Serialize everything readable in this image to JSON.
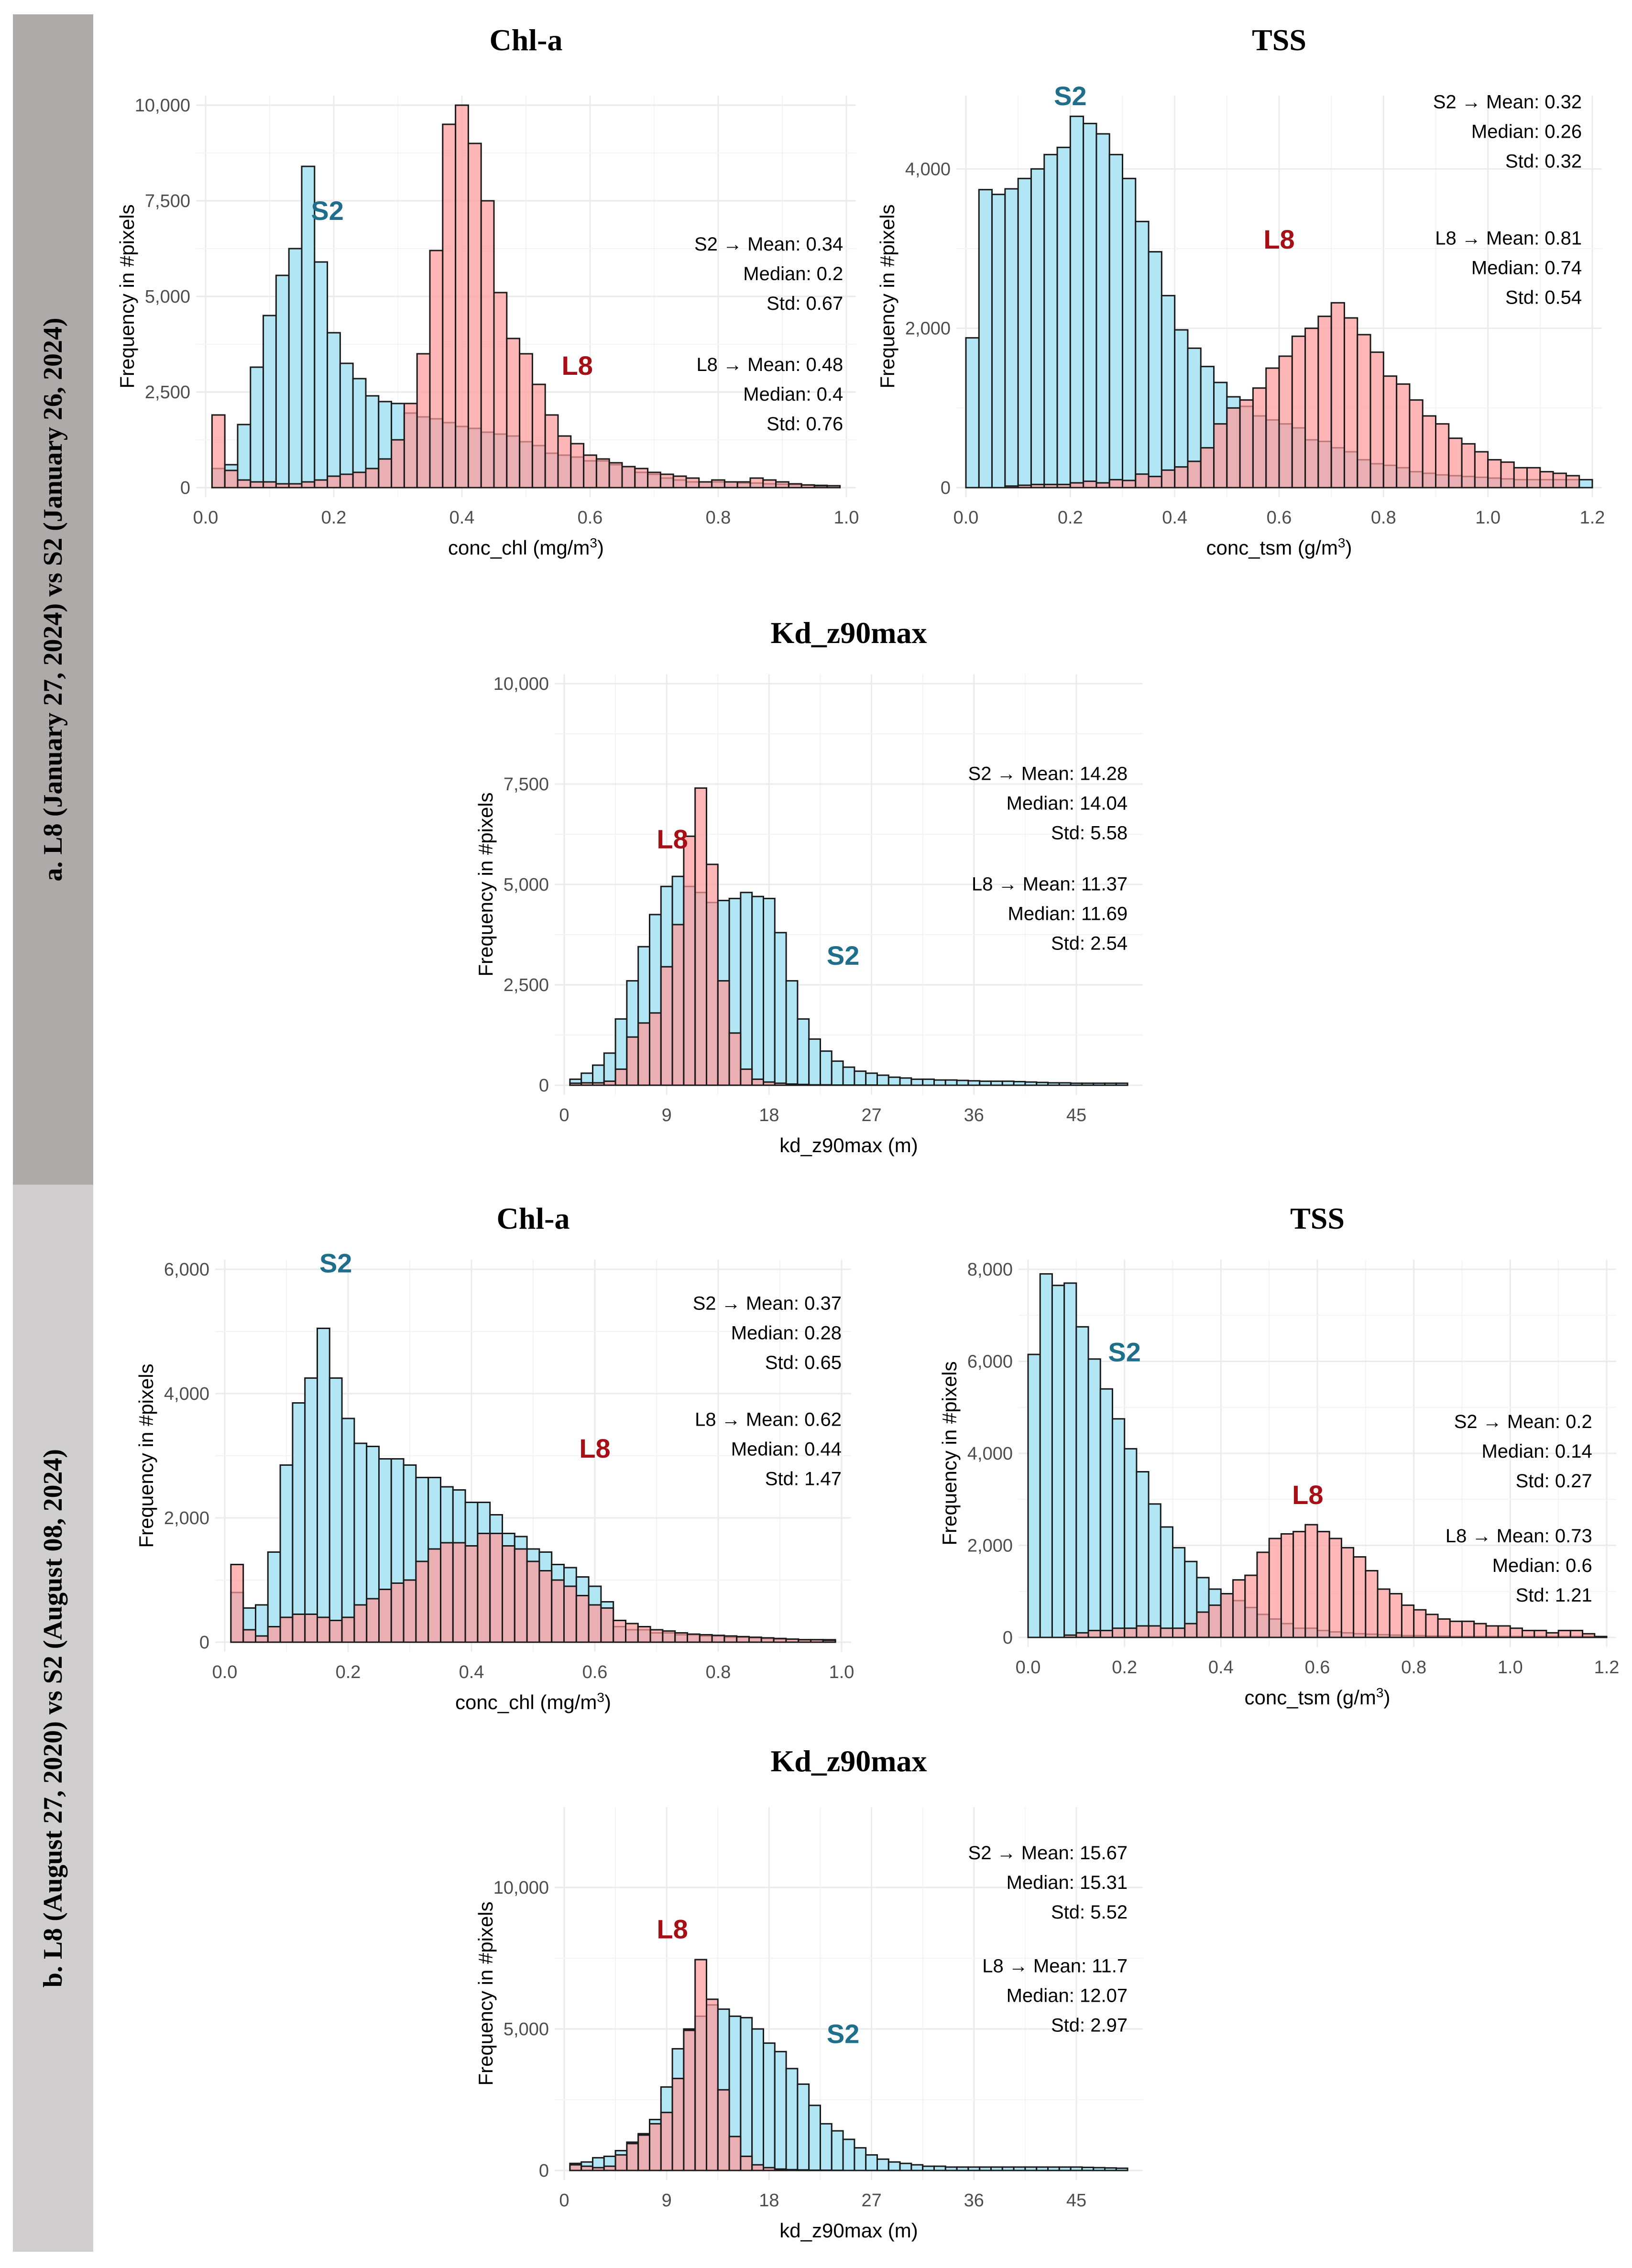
{
  "sections": [
    {
      "id": "a",
      "label": "a.   L8 (January 27, 2024) vs S2 (January 26, 2024)"
    },
    {
      "id": "b",
      "label": "b.   L8 (August 27, 2020) vs S2 (August 08, 2024)"
    }
  ],
  "colors": {
    "S2_fill": "#b3e6f5",
    "L8_fill": "#ff9a9a",
    "S2_tag": "#1f6e8c",
    "L8_tag": "#a50f15",
    "side_a": "#aeaaaa",
    "side_b": "#d0cece"
  },
  "chart_data": [
    {
      "id": "a-chl",
      "section": "a",
      "type": "bar",
      "title": "Chl-a",
      "xlabel": "conc_chl (mg/m",
      "xlabel_sup": "3",
      "xlabel_end": ")",
      "ylabel": "Frequency in #pixels",
      "xlim": [
        0,
        1
      ],
      "ylim": [
        0,
        10000
      ],
      "grid": true,
      "xticks": [
        0.0,
        0.2,
        0.4,
        0.6,
        0.8,
        1.0
      ],
      "xtick_labels": [
        "0.0",
        "0.2",
        "0.4",
        "0.6",
        "0.8",
        "1.0"
      ],
      "yticks": [
        0,
        2500,
        5000,
        7500,
        10000
      ],
      "ytick_labels": [
        "0",
        "2,500",
        "5,000",
        "7,500",
        "10,000"
      ],
      "bin_start": 0.01,
      "bin_width": 0.02,
      "series": [
        {
          "name": "S2",
          "values": [
            500,
            600,
            1650,
            3150,
            4500,
            5550,
            6250,
            8400,
            5900,
            4050,
            3250,
            2850,
            2400,
            2250,
            2200,
            1950,
            1850,
            1800,
            1700,
            1600,
            1550,
            1450,
            1400,
            1350,
            1200,
            1100,
            900,
            850,
            800,
            700,
            700,
            600,
            550,
            400,
            350,
            250,
            200,
            150,
            150,
            150,
            150,
            120,
            120,
            100,
            90,
            80,
            70,
            60,
            50
          ]
        },
        {
          "name": "L8",
          "values": [
            1900,
            450,
            200,
            150,
            150,
            100,
            100,
            150,
            200,
            300,
            350,
            400,
            500,
            750,
            1250,
            2200,
            3500,
            6200,
            9500,
            10000,
            9000,
            7500,
            5100,
            3900,
            3500,
            2700,
            1900,
            1350,
            1150,
            850,
            750,
            650,
            550,
            500,
            400,
            350,
            300,
            250,
            150,
            200,
            150,
            150,
            250,
            200,
            150,
            100,
            70,
            50,
            50
          ]
        }
      ],
      "annotations": {
        "S2_tag": "S2",
        "L8_tag": "L8",
        "S2_stats": [
          "S2  → Mean: 0.34",
          "Median: 0.2",
          "Std: 0.67"
        ],
        "L8_stats": [
          "L8  → Mean: 0.48",
          "Median: 0.4",
          "Std: 0.76"
        ]
      }
    },
    {
      "id": "a-tss",
      "section": "a",
      "type": "bar",
      "title": "TSS",
      "xlabel": "conc_tsm (g/m",
      "xlabel_sup": "3",
      "xlabel_end": ")",
      "ylabel": "Frequency in #pixels",
      "xlim": [
        0,
        1.2
      ],
      "ylim": [
        0,
        4800
      ],
      "grid": true,
      "xticks": [
        0.0,
        0.2,
        0.4,
        0.6,
        0.8,
        1.0,
        1.2
      ],
      "xtick_labels": [
        "0.0",
        "0.2",
        "0.4",
        "0.6",
        "0.8",
        "1.0",
        "1.2"
      ],
      "yticks": [
        0,
        2000,
        4000
      ],
      "ytick_labels": [
        "0",
        "2,000",
        "4,000"
      ],
      "bin_start": 0.0,
      "bin_width": 0.025,
      "series": [
        {
          "name": "S2",
          "values": [
            1880,
            3740,
            3680,
            3750,
            3880,
            4000,
            4180,
            4270,
            4660,
            4570,
            4440,
            4180,
            3880,
            3340,
            2960,
            2410,
            1980,
            1750,
            1520,
            1320,
            1140,
            1020,
            900,
            850,
            800,
            750,
            600,
            580,
            500,
            450,
            350,
            300,
            280,
            250,
            200,
            180,
            160,
            150,
            140,
            130,
            120,
            110,
            100,
            100,
            100,
            100,
            100,
            100
          ]
        },
        {
          "name": "L8",
          "values": [
            0,
            0,
            0,
            20,
            30,
            40,
            40,
            40,
            60,
            80,
            60,
            100,
            90,
            170,
            140,
            220,
            260,
            330,
            500,
            800,
            1000,
            1100,
            1250,
            1500,
            1650,
            1900,
            2000,
            2150,
            2320,
            2130,
            1920,
            1700,
            1400,
            1300,
            1100,
            900,
            800,
            620,
            550,
            450,
            350,
            320,
            250,
            250,
            200,
            180,
            150
          ]
        }
      ],
      "annotations": {
        "S2_tag": "S2",
        "L8_tag": "L8",
        "S2_stats": [
          "S2  → Mean: 0.32",
          "Median: 0.26",
          "Std: 0.32"
        ],
        "L8_stats": [
          "L8  → Mean: 0.81",
          "Median: 0.74",
          "Std: 0.54"
        ]
      }
    },
    {
      "id": "a-kd",
      "section": "a",
      "type": "bar",
      "title": "Kd_z90max",
      "xlabel": "kd_z90max (m)",
      "xlabel_sup": "",
      "xlabel_end": "",
      "ylabel": "Frequency in #pixels",
      "xlim": [
        0,
        50
      ],
      "ylim": [
        0,
        10000
      ],
      "grid": true,
      "xticks": [
        0,
        9,
        18,
        27,
        36,
        45
      ],
      "xtick_labels": [
        "0",
        "9",
        "18",
        "27",
        "36",
        "45"
      ],
      "yticks": [
        0,
        2500,
        5000,
        7500,
        10000
      ],
      "ytick_labels": [
        "0",
        "2,500",
        "5,000",
        "7,500",
        "10,000"
      ],
      "bin_start": 0.5,
      "bin_width": 1.0,
      "series": [
        {
          "name": "S2",
          "values": [
            150,
            300,
            500,
            800,
            1650,
            2600,
            3450,
            4250,
            4950,
            5200,
            4950,
            4800,
            4550,
            4600,
            4650,
            4800,
            4700,
            4650,
            3800,
            2600,
            1650,
            1150,
            850,
            600,
            450,
            350,
            300,
            250,
            200,
            180,
            150,
            150,
            130,
            130,
            120,
            110,
            100,
            100,
            100,
            90,
            80,
            70,
            60,
            60,
            50,
            50,
            50,
            50,
            50
          ]
        },
        {
          "name": "L8",
          "values": [
            50,
            60,
            60,
            100,
            400,
            1200,
            1550,
            1800,
            2950,
            4000,
            6200,
            7400,
            5500,
            2600,
            1300,
            400,
            150,
            80,
            50,
            30,
            20,
            10,
            10,
            5,
            5,
            5,
            5,
            0,
            0,
            0,
            0,
            0,
            0,
            0,
            0,
            0,
            0,
            0,
            0,
            0,
            0,
            0,
            0,
            0,
            0,
            0,
            0,
            0,
            0
          ]
        }
      ],
      "annotations": {
        "S2_tag": "S2",
        "L8_tag": "L8",
        "S2_stats": [
          "S2 → Mean: 14.28",
          "Median: 14.04",
          "Std: 5.58"
        ],
        "L8_stats": [
          "L8 → Mean: 11.37",
          "Median: 11.69",
          "Std: 2.54"
        ]
      }
    },
    {
      "id": "b-chl",
      "section": "b",
      "type": "bar",
      "title": "Chl-a",
      "xlabel": "conc_chl (mg/m",
      "xlabel_sup": "3",
      "xlabel_end": ")",
      "ylabel": "Frequency in #pixels",
      "xlim": [
        0,
        1
      ],
      "ylim": [
        0,
        6000
      ],
      "grid": true,
      "xticks": [
        0.0,
        0.2,
        0.4,
        0.6,
        0.8,
        1.0
      ],
      "xtick_labels": [
        "0.0",
        "0.2",
        "0.4",
        "0.6",
        "0.8",
        "1.0"
      ],
      "yticks": [
        0,
        2000,
        4000,
        6000
      ],
      "ytick_labels": [
        "0",
        "2,000",
        "4,000",
        "6,000"
      ],
      "bin_start": 0.01,
      "bin_width": 0.02,
      "series": [
        {
          "name": "S2",
          "values": [
            800,
            550,
            600,
            1450,
            2850,
            3850,
            4250,
            5050,
            4250,
            3600,
            3200,
            3150,
            2950,
            2950,
            2850,
            2650,
            2650,
            2500,
            2450,
            2250,
            2250,
            2050,
            1750,
            1700,
            1500,
            1450,
            1250,
            1200,
            1050,
            900,
            650,
            250,
            200,
            200,
            150,
            150,
            120,
            120,
            100,
            100,
            80,
            80,
            70,
            60,
            50,
            50,
            40,
            40,
            40
          ]
        },
        {
          "name": "L8",
          "values": [
            1250,
            200,
            100,
            250,
            400,
            450,
            450,
            400,
            350,
            400,
            600,
            700,
            850,
            950,
            1000,
            1300,
            1500,
            1600,
            1600,
            1550,
            1750,
            1750,
            1550,
            1500,
            1300,
            1150,
            1000,
            900,
            750,
            600,
            550,
            350,
            300,
            250,
            200,
            180,
            150,
            130,
            120,
            110,
            100,
            90,
            80,
            70,
            60,
            50,
            40,
            40,
            30
          ]
        }
      ],
      "annotations": {
        "S2_tag": "S2",
        "L8_tag": "L8",
        "S2_stats": [
          "S2  → Mean: 0.37",
          "Median: 0.28",
          "Std: 0.65"
        ],
        "L8_stats": [
          "L8  → Mean: 0.62",
          "Median: 0.44",
          "Std: 1.47"
        ]
      }
    },
    {
      "id": "b-tss",
      "section": "b",
      "type": "bar",
      "title": "TSS",
      "xlabel": "conc_tsm (g/m",
      "xlabel_sup": "3",
      "xlabel_end": ")",
      "ylabel": "Frequency in #pixels",
      "xlim": [
        0,
        1.2
      ],
      "ylim": [
        0,
        8000
      ],
      "grid": true,
      "xticks": [
        0.0,
        0.2,
        0.4,
        0.6,
        0.8,
        1.0,
        1.2
      ],
      "xtick_labels": [
        "0.0",
        "0.2",
        "0.4",
        "0.6",
        "0.8",
        "1.0",
        "1.2"
      ],
      "yticks": [
        0,
        2000,
        4000,
        6000,
        8000
      ],
      "ytick_labels": [
        "0",
        "2,000",
        "4,000",
        "6,000",
        "8,000"
      ],
      "bin_start": 0.0,
      "bin_width": 0.025,
      "series": [
        {
          "name": "S2",
          "values": [
            6150,
            7900,
            7650,
            7700,
            6750,
            6050,
            5400,
            4750,
            4100,
            3600,
            2900,
            2400,
            1950,
            1650,
            1300,
            1050,
            950,
            800,
            650,
            500,
            400,
            300,
            200,
            200,
            150,
            120,
            100,
            80,
            70,
            60,
            50,
            40,
            40,
            30,
            30,
            20,
            20,
            20,
            20,
            20,
            20,
            20,
            20,
            20,
            20,
            20,
            20,
            20
          ]
        },
        {
          "name": "L8",
          "values": [
            0,
            0,
            0,
            50,
            100,
            150,
            150,
            200,
            200,
            250,
            250,
            200,
            200,
            300,
            550,
            700,
            950,
            1250,
            1350,
            1850,
            2150,
            2250,
            2300,
            2450,
            2300,
            2150,
            1950,
            1750,
            1450,
            1050,
            950,
            700,
            600,
            500,
            400,
            350,
            350,
            300,
            250,
            250,
            200,
            150,
            150,
            100,
            150,
            150,
            80
          ]
        }
      ],
      "annotations": {
        "S2_tag": "S2",
        "L8_tag": "L8",
        "S2_stats": [
          "S2  → Mean: 0.2",
          "Median: 0.14",
          "Std: 0.27"
        ],
        "L8_stats": [
          "L8  → Mean: 0.73",
          "Median: 0.6",
          "Std: 1.21"
        ]
      }
    },
    {
      "id": "b-kd",
      "section": "b",
      "type": "bar",
      "title": "Kd_z90max",
      "xlabel": "kd_z90max (m)",
      "xlabel_sup": "",
      "xlabel_end": "",
      "ylabel": "Frequency in #pixels",
      "xlim": [
        0,
        50
      ],
      "ylim": [
        0,
        12500
      ],
      "grid": true,
      "xticks": [
        0,
        9,
        18,
        27,
        36,
        45
      ],
      "xtick_labels": [
        "0",
        "9",
        "18",
        "27",
        "36",
        "45"
      ],
      "yticks": [
        0,
        5000,
        10000
      ],
      "ytick_labels": [
        "0",
        "5,000",
        "10,000"
      ],
      "bin_start": 0.5,
      "bin_width": 1.0,
      "series": [
        {
          "name": "S2",
          "values": [
            250,
            300,
            450,
            500,
            700,
            1000,
            1300,
            1800,
            2950,
            4300,
            5000,
            5450,
            5850,
            5700,
            5450,
            5400,
            5000,
            4500,
            4200,
            3600,
            3050,
            2300,
            1650,
            1400,
            1100,
            800,
            550,
            400,
            300,
            250,
            200,
            150,
            150,
            120,
            120,
            120,
            120,
            120,
            120,
            120,
            120,
            120,
            120,
            120,
            120,
            110,
            100,
            90,
            80
          ]
        },
        {
          "name": "L8",
          "values": [
            200,
            150,
            100,
            150,
            550,
            950,
            1250,
            1650,
            2050,
            3250,
            4950,
            7450,
            6050,
            2850,
            1200,
            500,
            200,
            100,
            50,
            30,
            20,
            10,
            10,
            5,
            0,
            0,
            0,
            0,
            0,
            0,
            0,
            0,
            0,
            0,
            0,
            0,
            0,
            0,
            0,
            0,
            0,
            0,
            0,
            0,
            0,
            0,
            0,
            0,
            0
          ]
        }
      ],
      "annotations": {
        "S2_tag": "S2",
        "L8_tag": "L8",
        "S2_stats": [
          "S2 → Mean: 15.67",
          "Median: 15.31",
          "Std: 5.52"
        ],
        "L8_stats": [
          "L8 → Mean: 11.7",
          "Median: 12.07",
          "Std: 2.97"
        ]
      }
    }
  ]
}
